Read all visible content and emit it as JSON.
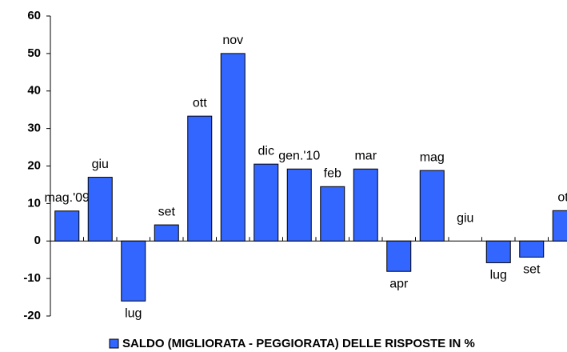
{
  "chart_data": {
    "type": "bar",
    "categories": [
      "mag.'09",
      "giu",
      "lug",
      "set",
      "ott",
      "nov",
      "dic",
      "gen.'10",
      "feb",
      "mar",
      "apr",
      "mag",
      "giu",
      "lug",
      "set",
      "ott"
    ],
    "series": [
      {
        "name": "SALDO (MIGLIORATA - PEGGIORATA) DELLE RISPOSTE IN %",
        "color": "#3366ff",
        "values": [
          8,
          17,
          -16,
          4.3,
          33.3,
          50,
          20.5,
          19.2,
          14.5,
          19.2,
          -8.1,
          18.8,
          0,
          -5.8,
          -4.3,
          8.1
        ]
      }
    ],
    "ylim": [
      -20,
      60
    ],
    "yticks": [
      -20,
      -10,
      0,
      10,
      20,
      30,
      40,
      50,
      60
    ],
    "grid": false,
    "legend": "bottom"
  }
}
